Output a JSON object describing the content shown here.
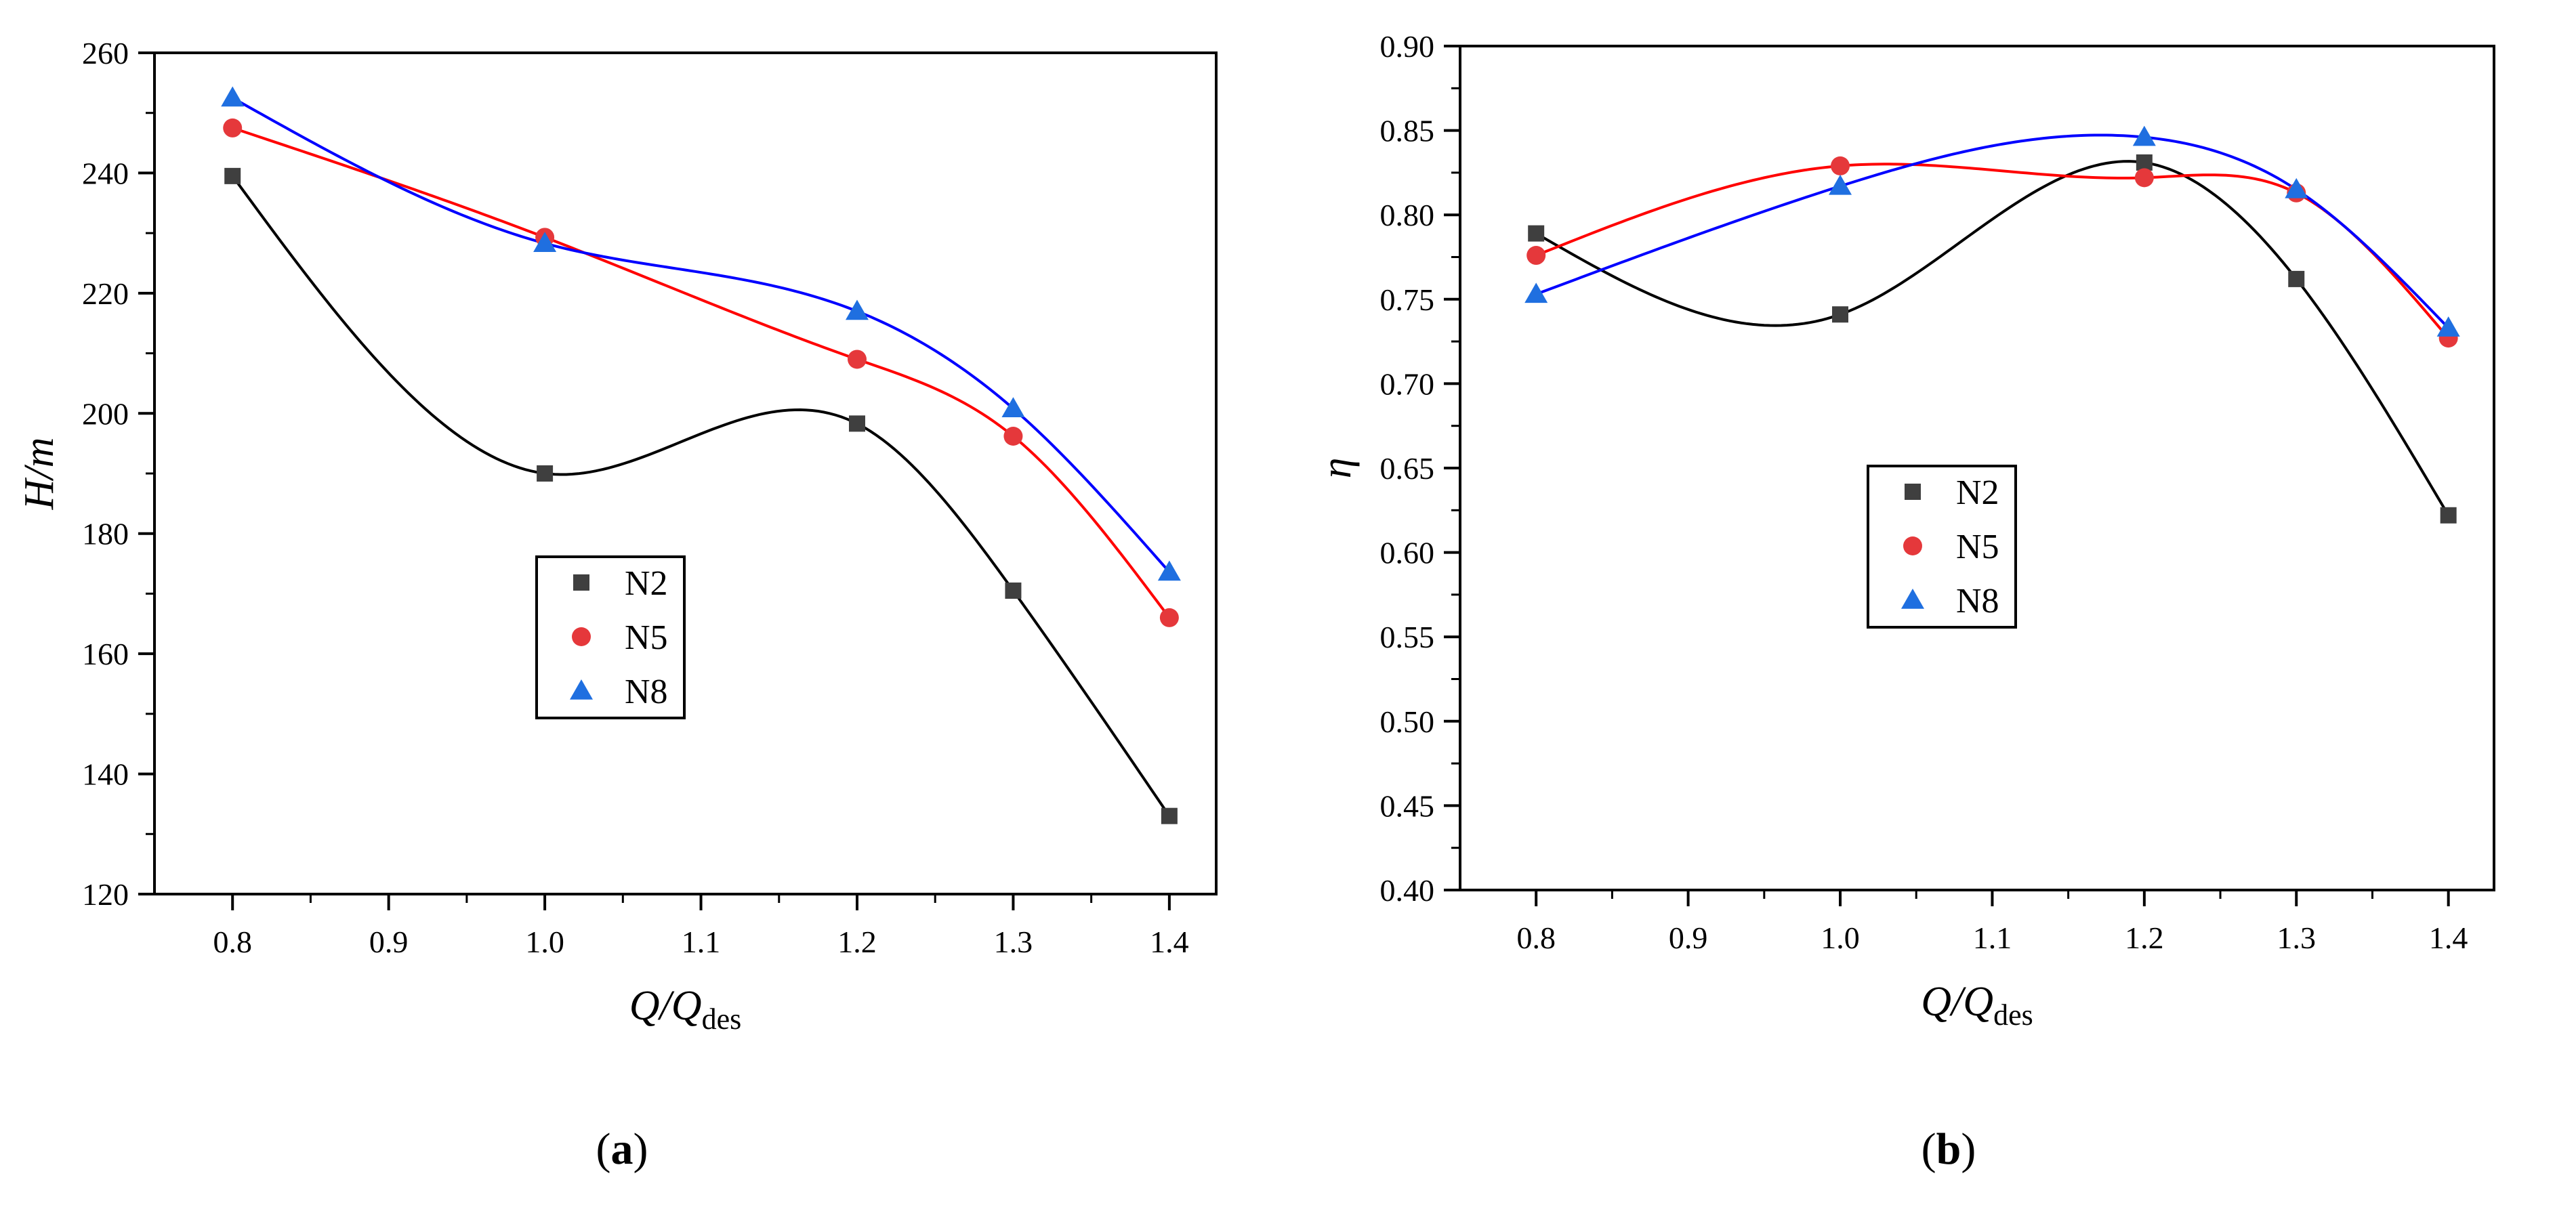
{
  "chart_data": [
    {
      "id": "a",
      "type": "scatter",
      "panel_label": "a",
      "xlabel": "Q/Q",
      "xlabel_sub": "des",
      "ylabel": "H/m",
      "xlim": [
        0.75,
        1.43
      ],
      "ylim": [
        120,
        260
      ],
      "xticks": [
        0.8,
        0.9,
        1.0,
        1.1,
        1.2,
        1.3,
        1.4
      ],
      "xtick_labels": [
        "0.8",
        "0.9",
        "1.0",
        "1.1",
        "1.2",
        "1.3",
        "1.4"
      ],
      "yticks": [
        120,
        140,
        160,
        180,
        200,
        220,
        240,
        260
      ],
      "ytick_labels": [
        "120",
        "140",
        "160",
        "180",
        "200",
        "220",
        "240",
        "260"
      ],
      "x": [
        0.8,
        1.0,
        1.2,
        1.3,
        1.4
      ],
      "series": [
        {
          "name": "N2",
          "marker": "square",
          "color": "#3f3f3f",
          "line_color": "#000000",
          "values": [
            239.5,
            190.0,
            198.3,
            170.5,
            133.0
          ]
        },
        {
          "name": "N5",
          "marker": "circle",
          "color": "#e5383b",
          "line_color": "#ff0000",
          "values": [
            247.5,
            229.3,
            209.0,
            196.2,
            166.0
          ]
        },
        {
          "name": "N8",
          "marker": "triangle",
          "color": "#1f6fe0",
          "line_color": "#0000ff",
          "values": [
            252.5,
            228.3,
            217.0,
            200.8,
            173.6
          ]
        }
      ],
      "grid": false,
      "legend_position": "center"
    },
    {
      "id": "b",
      "type": "scatter",
      "panel_label": "b",
      "xlabel": "Q/Q",
      "xlabel_sub": "des",
      "ylabel": "η",
      "xlim": [
        0.75,
        1.43
      ],
      "ylim": [
        0.4,
        0.9
      ],
      "xticks": [
        0.8,
        0.9,
        1.0,
        1.1,
        1.2,
        1.3,
        1.4
      ],
      "xtick_labels": [
        "0.8",
        "0.9",
        "1.0",
        "1.1",
        "1.2",
        "1.3",
        "1.4"
      ],
      "yticks": [
        0.4,
        0.45,
        0.5,
        0.55,
        0.6,
        0.65,
        0.7,
        0.75,
        0.8,
        0.85,
        0.9
      ],
      "ytick_labels": [
        "0.40",
        "0.45",
        "0.50",
        "0.55",
        "0.60",
        "0.65",
        "0.70",
        "0.75",
        "0.80",
        "0.85",
        "0.90"
      ],
      "x": [
        0.8,
        1.0,
        1.2,
        1.3,
        1.4
      ],
      "series": [
        {
          "name": "N2",
          "marker": "square",
          "color": "#3f3f3f",
          "line_color": "#000000",
          "values": [
            0.789,
            0.741,
            0.831,
            0.762,
            0.622
          ]
        },
        {
          "name": "N5",
          "marker": "circle",
          "color": "#e5383b",
          "line_color": "#ff0000",
          "values": [
            0.776,
            0.829,
            0.822,
            0.813,
            0.727
          ]
        },
        {
          "name": "N8",
          "marker": "triangle",
          "color": "#1f6fe0",
          "line_color": "#0000ff",
          "values": [
            0.753,
            0.817,
            0.846,
            0.815,
            0.733
          ]
        }
      ],
      "grid": false,
      "legend_position": "center-left"
    }
  ]
}
